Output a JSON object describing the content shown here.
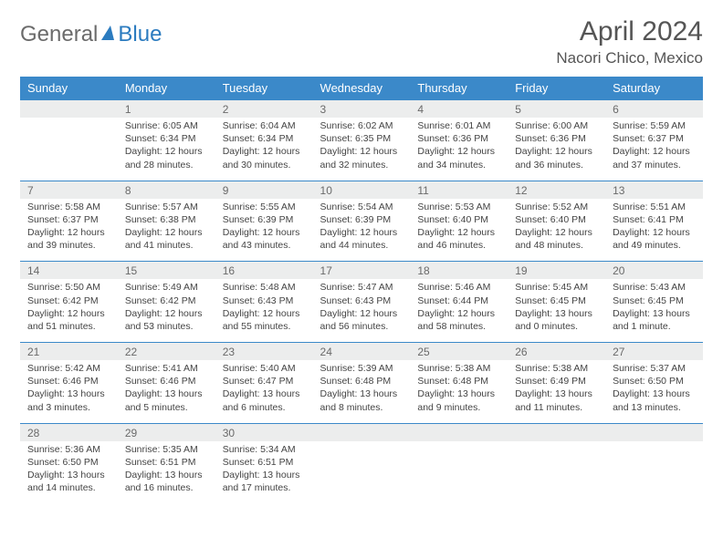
{
  "brand": {
    "general": "General",
    "blue": "Blue"
  },
  "title": "April 2024",
  "location": "Nacori Chico, Mexico",
  "dow": [
    "Sunday",
    "Monday",
    "Tuesday",
    "Wednesday",
    "Thursday",
    "Friday",
    "Saturday"
  ],
  "colors": {
    "header_bg": "#3b89c9",
    "header_fg": "#ffffff",
    "daynum_bg": "#eceded",
    "rule": "#3b89c9"
  },
  "weeks": [
    [
      null,
      {
        "n": "1",
        "sr": "6:05 AM",
        "ss": "6:34 PM",
        "dl": "12 hours and 28 minutes."
      },
      {
        "n": "2",
        "sr": "6:04 AM",
        "ss": "6:34 PM",
        "dl": "12 hours and 30 minutes."
      },
      {
        "n": "3",
        "sr": "6:02 AM",
        "ss": "6:35 PM",
        "dl": "12 hours and 32 minutes."
      },
      {
        "n": "4",
        "sr": "6:01 AM",
        "ss": "6:36 PM",
        "dl": "12 hours and 34 minutes."
      },
      {
        "n": "5",
        "sr": "6:00 AM",
        "ss": "6:36 PM",
        "dl": "12 hours and 36 minutes."
      },
      {
        "n": "6",
        "sr": "5:59 AM",
        "ss": "6:37 PM",
        "dl": "12 hours and 37 minutes."
      }
    ],
    [
      {
        "n": "7",
        "sr": "5:58 AM",
        "ss": "6:37 PM",
        "dl": "12 hours and 39 minutes."
      },
      {
        "n": "8",
        "sr": "5:57 AM",
        "ss": "6:38 PM",
        "dl": "12 hours and 41 minutes."
      },
      {
        "n": "9",
        "sr": "5:55 AM",
        "ss": "6:39 PM",
        "dl": "12 hours and 43 minutes."
      },
      {
        "n": "10",
        "sr": "5:54 AM",
        "ss": "6:39 PM",
        "dl": "12 hours and 44 minutes."
      },
      {
        "n": "11",
        "sr": "5:53 AM",
        "ss": "6:40 PM",
        "dl": "12 hours and 46 minutes."
      },
      {
        "n": "12",
        "sr": "5:52 AM",
        "ss": "6:40 PM",
        "dl": "12 hours and 48 minutes."
      },
      {
        "n": "13",
        "sr": "5:51 AM",
        "ss": "6:41 PM",
        "dl": "12 hours and 49 minutes."
      }
    ],
    [
      {
        "n": "14",
        "sr": "5:50 AM",
        "ss": "6:42 PM",
        "dl": "12 hours and 51 minutes."
      },
      {
        "n": "15",
        "sr": "5:49 AM",
        "ss": "6:42 PM",
        "dl": "12 hours and 53 minutes."
      },
      {
        "n": "16",
        "sr": "5:48 AM",
        "ss": "6:43 PM",
        "dl": "12 hours and 55 minutes."
      },
      {
        "n": "17",
        "sr": "5:47 AM",
        "ss": "6:43 PM",
        "dl": "12 hours and 56 minutes."
      },
      {
        "n": "18",
        "sr": "5:46 AM",
        "ss": "6:44 PM",
        "dl": "12 hours and 58 minutes."
      },
      {
        "n": "19",
        "sr": "5:45 AM",
        "ss": "6:45 PM",
        "dl": "13 hours and 0 minutes."
      },
      {
        "n": "20",
        "sr": "5:43 AM",
        "ss": "6:45 PM",
        "dl": "13 hours and 1 minute."
      }
    ],
    [
      {
        "n": "21",
        "sr": "5:42 AM",
        "ss": "6:46 PM",
        "dl": "13 hours and 3 minutes."
      },
      {
        "n": "22",
        "sr": "5:41 AM",
        "ss": "6:46 PM",
        "dl": "13 hours and 5 minutes."
      },
      {
        "n": "23",
        "sr": "5:40 AM",
        "ss": "6:47 PM",
        "dl": "13 hours and 6 minutes."
      },
      {
        "n": "24",
        "sr": "5:39 AM",
        "ss": "6:48 PM",
        "dl": "13 hours and 8 minutes."
      },
      {
        "n": "25",
        "sr": "5:38 AM",
        "ss": "6:48 PM",
        "dl": "13 hours and 9 minutes."
      },
      {
        "n": "26",
        "sr": "5:38 AM",
        "ss": "6:49 PM",
        "dl": "13 hours and 11 minutes."
      },
      {
        "n": "27",
        "sr": "5:37 AM",
        "ss": "6:50 PM",
        "dl": "13 hours and 13 minutes."
      }
    ],
    [
      {
        "n": "28",
        "sr": "5:36 AM",
        "ss": "6:50 PM",
        "dl": "13 hours and 14 minutes."
      },
      {
        "n": "29",
        "sr": "5:35 AM",
        "ss": "6:51 PM",
        "dl": "13 hours and 16 minutes."
      },
      {
        "n": "30",
        "sr": "5:34 AM",
        "ss": "6:51 PM",
        "dl": "13 hours and 17 minutes."
      },
      null,
      null,
      null,
      null
    ]
  ],
  "labels": {
    "sunrise": "Sunrise: ",
    "sunset": "Sunset: ",
    "daylight": "Daylight: "
  }
}
